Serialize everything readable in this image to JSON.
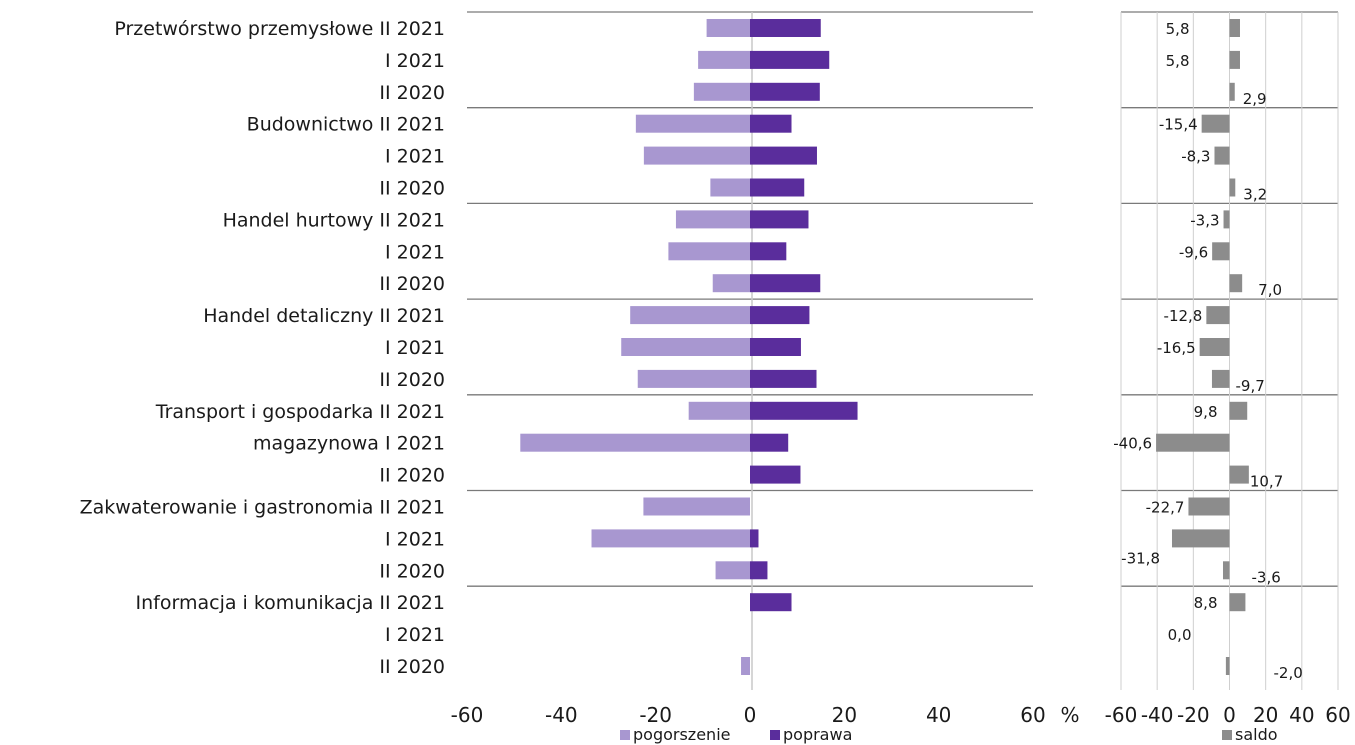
{
  "chart_data": [
    {
      "type": "bar",
      "orientation": "horizontal",
      "categories": [
        "Przetwórstwo przemysłowe II 2021",
        "I 2021",
        "II 2020",
        "Budownictwo II 2021",
        "I 2021",
        "II 2020",
        "Handel hurtowy II 2021",
        "I 2021",
        "II 2020",
        "Handel detaliczny II 2021",
        "I 2021",
        "II 2020",
        "Transport i gospodarka II 2021",
        "magazynowa  I 2021",
        "II 2020",
        "Zakwaterowanie i gastronomia II 2021",
        "I 2021",
        "II 2020",
        "Informacja i komunikacja II 2021",
        "I 2021",
        "II 2020"
      ],
      "series": [
        {
          "name": "pogorszenie",
          "color": "#a897d0",
          "values": [
            -9.2,
            -11.0,
            -11.9,
            -24.2,
            -22.5,
            -8.4,
            -15.7,
            -17.3,
            -7.9,
            -25.4,
            -27.3,
            -23.8,
            -13.0,
            -48.7,
            0,
            -22.6,
            -33.6,
            -7.3,
            0,
            0,
            -1.9
          ]
        },
        {
          "name": "poprawa",
          "color": "#5a2d9c",
          "values": [
            15.0,
            16.8,
            14.8,
            8.8,
            14.2,
            11.5,
            12.4,
            7.7,
            14.9,
            12.6,
            10.8,
            14.1,
            22.8,
            8.1,
            10.7,
            0,
            1.8,
            3.7,
            8.8,
            0,
            0
          ]
        }
      ],
      "xlim": [
        -60,
        60
      ],
      "xticks": [
        "-60",
        "-40",
        "-20",
        "0",
        "20",
        "40",
        "60"
      ],
      "unit_label": "%",
      "legend_position": "bottom"
    },
    {
      "type": "bar",
      "orientation": "horizontal",
      "categories": [
        "Przetwórstwo przemysłowe II 2021",
        "I 2021",
        "II 2020",
        "Budownictwo II 2021",
        "I 2021",
        "II 2020",
        "Handel hurtowy II 2021",
        "I 2021",
        "II 2020",
        "Handel detaliczny II 2021",
        "I 2021",
        "II 2020",
        "Transport i gospodarka II 2021",
        "magazynowa  I 2021",
        "II 2020",
        "Zakwaterowanie i gastronomia II 2021",
        "I 2021",
        "II 2020",
        "Informacja i komunikacja II 2021",
        "I 2021",
        "II 2020"
      ],
      "series": [
        {
          "name": "saldo",
          "color": "#8c8c8c",
          "values": [
            5.8,
            5.8,
            2.9,
            -15.4,
            -8.3,
            3.2,
            -3.3,
            -9.6,
            7.0,
            -12.8,
            -16.5,
            -9.7,
            9.8,
            -40.6,
            10.7,
            -22.7,
            -31.8,
            -3.6,
            8.8,
            0.0,
            -2.0
          ],
          "labels": [
            "5,8",
            "5,8",
            "2,9",
            "-15,4",
            "-8,3",
            "3,2",
            "-3,3",
            "-9,6",
            "7,0",
            "-12,8",
            "-16,5",
            "-9,7",
            "9,8",
            "-40,6",
            "10,7",
            "-22,7",
            "-31,8",
            "-3,6",
            "8,8",
            "0,0",
            "-2,0"
          ]
        }
      ],
      "xlim": [
        -60,
        60
      ],
      "xticks": [
        "-60",
        "-40",
        "-20",
        "0",
        "20",
        "40",
        "60"
      ],
      "legend_position": "bottom"
    }
  ]
}
